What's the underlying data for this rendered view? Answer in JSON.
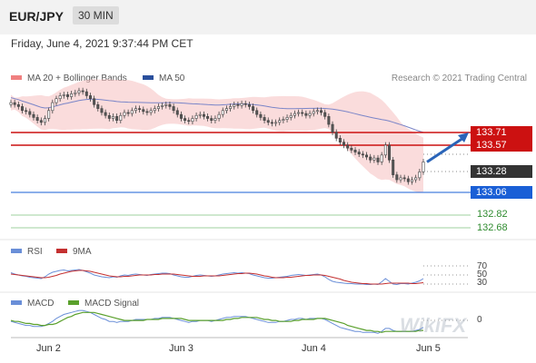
{
  "header": {
    "symbol": "EUR/JPY",
    "timeframe": "30 MIN"
  },
  "datetime": "Friday, June 4, 2021 9:37:44 PM CET",
  "legend": {
    "ma20": "MA 20 + Bollinger Bands",
    "ma50": "MA 50",
    "rsi": "RSI",
    "rsi_ma": "9MA",
    "macd": "MACD",
    "macd_signal": "MACD Signal"
  },
  "credit": "Research © 2021 Trading Central",
  "watermark": "WikiFX",
  "colors": {
    "resistance": "#cc1111",
    "support": "#1a5fd6",
    "target": "#2e8b2e",
    "current": "#333333",
    "candle_up": "#ffffff",
    "candle_down": "#555555",
    "bollinger": "#f6c0c0",
    "ma50": "#7a85c8",
    "rsi": "#6a8fd8",
    "rsi_ma": "#c43030",
    "macd": "#6a8fd8",
    "macd_signal": "#5aa02c",
    "arrow": "#2a64b8"
  },
  "price_levels": [
    {
      "label": "133.71",
      "value": 133.71,
      "kind": "resistance"
    },
    {
      "label": "133.57",
      "value": 133.57,
      "kind": "resistance"
    },
    {
      "label": "133.28",
      "value": 133.28,
      "kind": "current"
    },
    {
      "label": "133.06",
      "value": 133.06,
      "kind": "support"
    },
    {
      "label": "132.82",
      "value": 132.82,
      "kind": "target"
    },
    {
      "label": "132.68",
      "value": 132.68,
      "kind": "target"
    }
  ],
  "rsi_levels": [
    "70",
    "50",
    "30"
  ],
  "macd_levels": [
    "0"
  ],
  "chart_data": {
    "type": "candlestick",
    "x_labels": [
      "Jun 2",
      "Jun 3",
      "Jun 4",
      "Jun 5"
    ],
    "ylim": [
      132.55,
      134.0
    ],
    "forecast_arrow": {
      "from": 133.28,
      "to": 133.71
    },
    "close": [
      133.88,
      133.86,
      133.84,
      133.8,
      133.79,
      133.76,
      133.73,
      133.7,
      133.68,
      133.72,
      133.8,
      133.88,
      133.92,
      133.95,
      133.96,
      133.94,
      133.97,
      133.98,
      134.0,
      133.99,
      133.95,
      133.92,
      133.86,
      133.82,
      133.78,
      133.75,
      133.72,
      133.74,
      133.7,
      133.75,
      133.78,
      133.77,
      133.8,
      133.82,
      133.81,
      133.79,
      133.78,
      133.8,
      133.82,
      133.84,
      133.85,
      133.86,
      133.84,
      133.8,
      133.76,
      133.72,
      133.7,
      133.69,
      133.72,
      133.75,
      133.76,
      133.74,
      133.72,
      133.7,
      133.72,
      133.76,
      133.8,
      133.82,
      133.84,
      133.86,
      133.85,
      133.87,
      133.86,
      133.84,
      133.8,
      133.76,
      133.73,
      133.7,
      133.68,
      133.67,
      133.68,
      133.7,
      133.71,
      133.73,
      133.75,
      133.77,
      133.78,
      133.77,
      133.75,
      133.77,
      133.79,
      133.8,
      133.78,
      133.74,
      133.66,
      133.58,
      133.52,
      133.48,
      133.45,
      133.42,
      133.4,
      133.38,
      133.36,
      133.35,
      133.33,
      133.3,
      133.32,
      133.28,
      133.35,
      133.45,
      133.3,
      133.15,
      133.1,
      133.12,
      133.11,
      133.08,
      133.1,
      133.12,
      133.18,
      133.28
    ],
    "rsi": [
      55,
      52,
      50,
      48,
      47,
      45,
      44,
      43,
      42,
      46,
      52,
      56,
      58,
      60,
      61,
      59,
      60,
      61,
      62,
      60,
      57,
      54,
      50,
      48,
      46,
      45,
      44,
      46,
      45,
      48,
      50,
      49,
      51,
      52,
      51,
      50,
      49,
      51,
      52,
      53,
      54,
      54,
      53,
      50,
      48,
      46,
      45,
      45,
      47,
      49,
      50,
      49,
      48,
      47,
      48,
      50,
      52,
      53,
      54,
      55,
      54,
      55,
      54,
      53,
      50,
      48,
      46,
      44,
      43,
      43,
      44,
      45,
      46,
      47,
      49,
      50,
      51,
      50,
      49,
      50,
      51,
      52,
      50,
      46,
      40,
      36,
      34,
      33,
      32,
      31,
      31,
      30,
      30,
      30,
      29,
      29,
      30,
      29,
      35,
      42,
      36,
      30,
      29,
      31,
      31,
      30,
      32,
      34,
      37,
      42
    ],
    "rsi_ma": [
      52,
      51,
      50,
      49,
      48,
      47,
      46,
      45,
      44,
      44,
      45,
      47,
      49,
      52,
      54,
      56,
      58,
      59,
      60,
      60,
      59,
      58,
      56,
      54,
      52,
      50,
      48,
      47,
      46,
      46,
      47,
      47,
      48,
      49,
      50,
      50,
      50,
      50,
      51,
      51,
      52,
      52,
      52,
      52,
      51,
      50,
      49,
      48,
      47,
      47,
      47,
      48,
      48,
      48,
      48,
      48,
      49,
      50,
      51,
      52,
      53,
      53,
      54,
      54,
      53,
      52,
      50,
      48,
      47,
      45,
      44,
      44,
      44,
      45,
      45,
      46,
      47,
      48,
      49,
      49,
      50,
      50,
      50,
      49,
      47,
      45,
      43,
      41,
      38,
      36,
      34,
      33,
      32,
      31,
      31,
      30,
      30,
      30,
      30,
      31,
      32,
      32,
      32,
      32,
      32,
      32,
      31,
      31,
      32,
      33
    ],
    "macd": [
      -0.02,
      -0.03,
      -0.04,
      -0.05,
      -0.06,
      -0.06,
      -0.07,
      -0.07,
      -0.07,
      -0.06,
      -0.04,
      -0.02,
      0.01,
      0.03,
      0.05,
      0.06,
      0.07,
      0.08,
      0.09,
      0.09,
      0.08,
      0.07,
      0.05,
      0.03,
      0.01,
      0.0,
      -0.02,
      -0.02,
      -0.03,
      -0.02,
      -0.02,
      -0.02,
      -0.01,
      0.0,
      0.0,
      0.0,
      0.0,
      0.0,
      0.01,
      0.01,
      0.02,
      0.02,
      0.02,
      0.01,
      0.0,
      -0.01,
      -0.02,
      -0.03,
      -0.02,
      -0.02,
      -0.01,
      -0.01,
      -0.01,
      -0.02,
      -0.01,
      0.0,
      0.01,
      0.02,
      0.02,
      0.03,
      0.03,
      0.03,
      0.03,
      0.02,
      0.01,
      0.0,
      -0.01,
      -0.02,
      -0.03,
      -0.03,
      -0.03,
      -0.02,
      -0.02,
      -0.01,
      0.0,
      0.0,
      0.01,
      0.01,
      0.0,
      0.01,
      0.01,
      0.01,
      0.01,
      0.0,
      -0.02,
      -0.04,
      -0.06,
      -0.08,
      -0.09,
      -0.1,
      -0.11,
      -0.12,
      -0.12,
      -0.13,
      -0.13,
      -0.13,
      -0.13,
      -0.14,
      -0.12,
      -0.09,
      -0.09,
      -0.11,
      -0.12,
      -0.12,
      -0.12,
      -0.12,
      -0.12,
      -0.11,
      -0.1,
      -0.08
    ],
    "macd_signal": [
      -0.01,
      -0.02,
      -0.02,
      -0.03,
      -0.04,
      -0.04,
      -0.05,
      -0.05,
      -0.06,
      -0.06,
      -0.05,
      -0.05,
      -0.04,
      -0.02,
      0.0,
      0.02,
      0.03,
      0.05,
      0.06,
      0.07,
      0.07,
      0.07,
      0.07,
      0.06,
      0.05,
      0.04,
      0.03,
      0.02,
      0.01,
      0.0,
      -0.01,
      -0.01,
      -0.01,
      -0.01,
      -0.01,
      -0.01,
      0.0,
      0.0,
      0.0,
      0.0,
      0.01,
      0.01,
      0.01,
      0.01,
      0.01,
      0.01,
      0.0,
      -0.01,
      -0.01,
      -0.01,
      -0.01,
      -0.01,
      -0.01,
      -0.01,
      -0.01,
      -0.01,
      -0.01,
      0.0,
      0.0,
      0.01,
      0.01,
      0.02,
      0.02,
      0.02,
      0.02,
      0.02,
      0.01,
      0.0,
      0.0,
      -0.01,
      -0.01,
      -0.02,
      -0.02,
      -0.02,
      -0.02,
      -0.01,
      -0.01,
      0.0,
      0.0,
      0.0,
      0.0,
      0.01,
      0.01,
      0.01,
      0.0,
      -0.01,
      -0.02,
      -0.03,
      -0.04,
      -0.06,
      -0.07,
      -0.08,
      -0.09,
      -0.1,
      -0.11,
      -0.11,
      -0.12,
      -0.12,
      -0.13,
      -0.12,
      -0.12,
      -0.12,
      -0.12,
      -0.12,
      -0.12,
      -0.12,
      -0.12,
      -0.12,
      -0.11,
      -0.11
    ]
  }
}
